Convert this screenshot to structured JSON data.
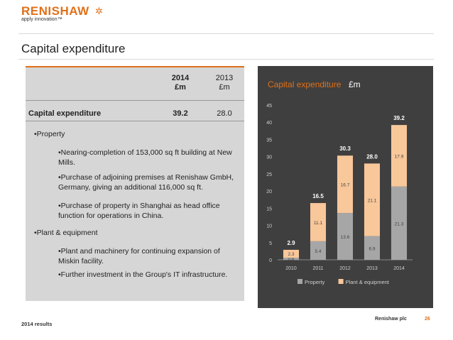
{
  "logo": {
    "name": "RENISHAW",
    "tagline": "apply innovation™"
  },
  "slide": {
    "title": "Capital expenditure"
  },
  "table": {
    "col_2014_year": "2014",
    "col_2014_unit": "£m",
    "col_2013_year": "2013",
    "col_2013_unit": "£m",
    "row_label": "Capital expenditure",
    "row_2014": "39.2",
    "row_2013": "28.0"
  },
  "bullets": [
    "•Property",
    "•Nearing-completion of 153,000 sq ft building at New Mills.",
    "•Purchase of adjoining premises at Renishaw GmbH, Germany, giving an additional 116,000 sq ft.",
    "•Purchase of property in Shanghai as head office function for operations in China.",
    "•Plant & equipment",
    "•Plant and machinery for continuing expansion of Miskin facility.",
    "•Further investment in the Group's IT infrastructure."
  ],
  "colors": {
    "accent": "#e0701a",
    "panel": "#d6d6d6",
    "chart_bg": "#3f3f3f",
    "property": "#a6a6a6",
    "plant": "#f8c79a"
  },
  "chart_data": {
    "type": "bar",
    "stacked": true,
    "title": "Capital expenditure",
    "title_unit": "£m",
    "categories": [
      "2010",
      "2011",
      "2012",
      "2013",
      "2014"
    ],
    "series": [
      {
        "name": "Property",
        "values": [
          0.6,
          5.4,
          13.6,
          6.9,
          21.3
        ]
      },
      {
        "name": "Plant & equipment",
        "values": [
          2.3,
          11.1,
          16.7,
          21.1,
          17.9
        ]
      }
    ],
    "totals": [
      2.9,
      16.5,
      30.3,
      28.0,
      39.2
    ],
    "segment_labels": [
      [
        "0.6",
        "5.4",
        "13.6",
        "6.9",
        "21.3"
      ],
      [
        "2.3",
        "11.1",
        "16.7",
        "21.1",
        "17.9"
      ]
    ],
    "total_labels": [
      "2.9",
      "16.5",
      "30.3",
      "28.0",
      "39.2"
    ],
    "ylim": [
      0,
      45
    ],
    "yticks": [
      "0",
      "5",
      "10",
      "15",
      "20",
      "25",
      "30",
      "35",
      "40",
      "45"
    ],
    "legend": "bottom",
    "grid": false
  },
  "footer": {
    "left": "2014 results",
    "company": "Renishaw plc",
    "page": "26"
  }
}
